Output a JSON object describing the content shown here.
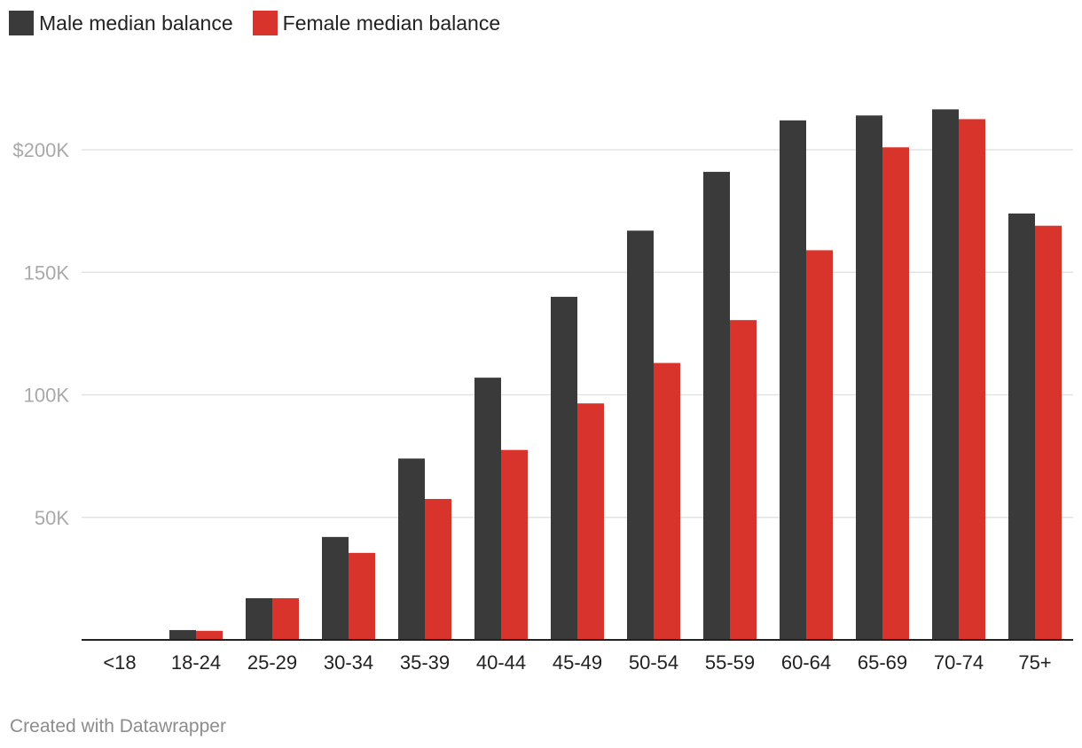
{
  "footer": {
    "credit": "Created with Datawrapper"
  },
  "chart_data": {
    "type": "bar",
    "title": "",
    "xlabel": "",
    "ylabel": "",
    "categories": [
      "<18",
      "18-24",
      "25-29",
      "30-34",
      "35-39",
      "40-44",
      "45-49",
      "50-54",
      "55-59",
      "60-64",
      "65-69",
      "70-74",
      "75+"
    ],
    "series": [
      {
        "name": "Male median balance",
        "color": "#3a3a3a",
        "values": [
          0,
          4000,
          17000,
          42000,
          74000,
          107000,
          140000,
          167000,
          191000,
          212000,
          214000,
          216500,
          174000
        ]
      },
      {
        "name": "Female median balance",
        "color": "#d9342b",
        "values": [
          0,
          3700,
          17000,
          35500,
          57500,
          77500,
          96500,
          113000,
          130500,
          159000,
          201000,
          212500,
          169000
        ]
      }
    ],
    "ylim": [
      0,
      235000
    ],
    "yticks": [
      {
        "value": 50000,
        "label": "50K"
      },
      {
        "value": 100000,
        "label": "100K"
      },
      {
        "value": 150000,
        "label": "150K"
      },
      {
        "value": 200000,
        "label": "$200K"
      }
    ],
    "grid": true,
    "legend_position": "top-left"
  }
}
